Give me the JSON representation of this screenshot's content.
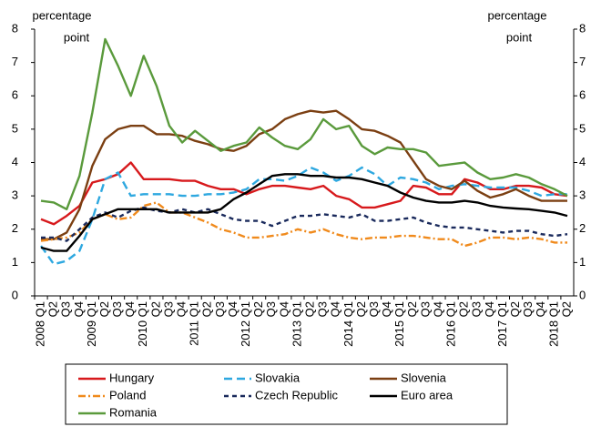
{
  "chart_data": {
    "type": "line",
    "y_label": [
      "percentage",
      "point"
    ],
    "y2_label": [
      "percentage",
      "point"
    ],
    "categories": [
      "2008 Q1",
      "Q2",
      "Q3",
      "Q4",
      "2009 Q1",
      "Q2",
      "Q3",
      "Q4",
      "2010 Q1",
      "Q2",
      "Q3",
      "Q4",
      "2011 Q1",
      "Q2",
      "Q3",
      "Q4",
      "2012 Q1",
      "Q2",
      "Q3",
      "Q4",
      "2013 Q1",
      "Q2",
      "Q3",
      "Q4",
      "2014 Q1",
      "Q2",
      "Q3",
      "Q4",
      "2015 Q1",
      "Q2",
      "Q3",
      "Q4",
      "2016 Q1",
      "Q2",
      "Q3",
      "Q4",
      "2017 Q1",
      "Q2",
      "Q3",
      "Q4",
      "2018 Q1",
      "Q2"
    ],
    "ylim": [
      0,
      8
    ],
    "yticks": [
      0,
      1,
      2,
      3,
      4,
      5,
      6,
      7,
      8
    ],
    "y2lim": [
      0,
      8
    ],
    "y2ticks": [
      0,
      1,
      2,
      3,
      4,
      5,
      6,
      7,
      8
    ],
    "grid": false,
    "series": [
      {
        "name": "Hungary",
        "color": "#d7191c",
        "dash": "solid",
        "values": [
          2.3,
          2.15,
          2.4,
          2.7,
          3.4,
          3.5,
          3.65,
          4.0,
          3.5,
          3.5,
          3.5,
          3.45,
          3.45,
          3.3,
          3.2,
          3.2,
          3.05,
          3.2,
          3.3,
          3.3,
          3.25,
          3.2,
          3.3,
          3.0,
          2.9,
          2.65,
          2.65,
          2.75,
          2.85,
          3.3,
          3.25,
          3.05,
          3.05,
          3.5,
          3.4,
          3.2,
          3.2,
          3.3,
          3.3,
          3.25,
          3.05,
          3.0
        ]
      },
      {
        "name": "Slovakia",
        "color": "#2ea8e0",
        "dash": "dashed",
        "values": [
          1.5,
          0.95,
          1.05,
          1.35,
          2.3,
          3.5,
          3.7,
          3.0,
          3.05,
          3.05,
          3.05,
          3.0,
          3.0,
          3.05,
          3.05,
          3.1,
          3.2,
          3.5,
          3.5,
          3.45,
          3.6,
          3.85,
          3.7,
          3.45,
          3.6,
          3.85,
          3.65,
          3.3,
          3.55,
          3.5,
          3.4,
          3.2,
          3.3,
          3.35,
          3.3,
          3.25,
          3.25,
          3.25,
          3.15,
          3.0,
          3.05,
          3.05
        ]
      },
      {
        "name": "Slovenia",
        "color": "#7b3f12",
        "dash": "solid",
        "values": [
          1.7,
          1.7,
          1.9,
          2.6,
          3.9,
          4.7,
          5.0,
          5.1,
          5.1,
          4.85,
          4.85,
          4.8,
          4.65,
          4.55,
          4.4,
          4.35,
          4.5,
          4.85,
          5.0,
          5.3,
          5.45,
          5.55,
          5.5,
          5.55,
          5.3,
          5.0,
          4.95,
          4.8,
          4.6,
          4.05,
          3.5,
          3.3,
          3.2,
          3.45,
          3.15,
          2.95,
          3.05,
          3.2,
          3.0,
          2.85,
          2.85,
          2.85
        ]
      },
      {
        "name": "Poland",
        "color": "#f08a1c",
        "dash": "dashdot",
        "values": [
          1.65,
          1.7,
          1.75,
          1.9,
          2.3,
          2.45,
          2.3,
          2.35,
          2.7,
          2.8,
          2.5,
          2.5,
          2.35,
          2.2,
          2.0,
          1.9,
          1.75,
          1.75,
          1.8,
          1.85,
          2.0,
          1.9,
          2.0,
          1.85,
          1.75,
          1.7,
          1.75,
          1.75,
          1.8,
          1.8,
          1.75,
          1.7,
          1.7,
          1.5,
          1.6,
          1.75,
          1.75,
          1.7,
          1.75,
          1.7,
          1.6,
          1.6
        ]
      },
      {
        "name": "Czech Republic",
        "color": "#1a2a5c",
        "dash": "short",
        "values": [
          1.75,
          1.75,
          1.65,
          2.0,
          2.35,
          2.5,
          2.35,
          2.55,
          2.65,
          2.55,
          2.5,
          2.6,
          2.5,
          2.6,
          2.45,
          2.3,
          2.25,
          2.25,
          2.1,
          2.25,
          2.4,
          2.4,
          2.45,
          2.4,
          2.35,
          2.45,
          2.25,
          2.25,
          2.3,
          2.35,
          2.2,
          2.1,
          2.05,
          2.05,
          2.0,
          1.95,
          1.9,
          1.95,
          1.95,
          1.85,
          1.8,
          1.85
        ]
      },
      {
        "name": "Euro area",
        "color": "#000000",
        "dash": "solid",
        "values": [
          1.45,
          1.35,
          1.35,
          1.8,
          2.3,
          2.45,
          2.6,
          2.6,
          2.6,
          2.6,
          2.5,
          2.5,
          2.5,
          2.5,
          2.6,
          2.9,
          3.1,
          3.35,
          3.6,
          3.65,
          3.65,
          3.6,
          3.6,
          3.55,
          3.55,
          3.5,
          3.4,
          3.3,
          3.1,
          2.95,
          2.85,
          2.8,
          2.8,
          2.85,
          2.8,
          2.7,
          2.65,
          2.62,
          2.6,
          2.55,
          2.5,
          2.4
        ]
      },
      {
        "name": "Romania",
        "color": "#5a9a3c",
        "dash": "solid",
        "values": [
          2.85,
          2.8,
          2.6,
          3.6,
          5.5,
          7.7,
          6.9,
          6.0,
          7.2,
          6.3,
          5.1,
          4.6,
          4.95,
          4.65,
          4.35,
          4.5,
          4.6,
          5.05,
          4.75,
          4.5,
          4.4,
          4.7,
          5.3,
          5.0,
          5.1,
          4.5,
          4.25,
          4.45,
          4.4,
          4.4,
          4.3,
          3.9,
          3.95,
          4.0,
          3.7,
          3.5,
          3.55,
          3.65,
          3.55,
          3.35,
          3.2,
          3.0
        ]
      }
    ]
  }
}
